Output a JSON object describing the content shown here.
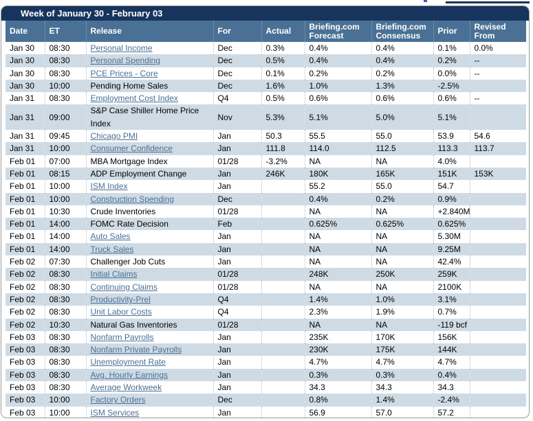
{
  "page": {
    "cutoff_fragment": "partial element cut off at top edge"
  },
  "calendar": {
    "title": "Week of January 30 - February 03",
    "columns": [
      "Date",
      "ET",
      "Release",
      "For",
      "Actual",
      "Briefing.com Forecast",
      "Briefing.com Consensus",
      "Prior",
      "Revised From"
    ],
    "colors": {
      "title_bar": "#16345c",
      "header_row": "#4a7195",
      "row_stripe": "#cfdbe4",
      "link": "#4a6f94",
      "border": "#999999"
    },
    "rows": [
      {
        "date": "Jan 30",
        "et": "08:30",
        "release": "Personal Income",
        "link": true,
        "for": "Dec",
        "actual": "0.3%",
        "forecast": "0.4%",
        "consensus": "0.4%",
        "prior": "0.1%",
        "revised": "0.0%"
      },
      {
        "date": "Jan 30",
        "et": "08:30",
        "release": "Personal Spending",
        "link": true,
        "for": "Dec",
        "actual": "0.5%",
        "forecast": "0.4%",
        "consensus": "0.4%",
        "prior": "0.2%",
        "revised": "--"
      },
      {
        "date": "Jan 30",
        "et": "08:30",
        "release": "PCE Prices - Core",
        "link": true,
        "for": "Dec",
        "actual": "0.1%",
        "forecast": "0.2%",
        "consensus": "0.2%",
        "prior": "0.0%",
        "revised": "--"
      },
      {
        "date": "Jan 30",
        "et": "10:00",
        "release": "Pending Home Sales",
        "link": false,
        "for": "Dec",
        "actual": "1.6%",
        "forecast": "1.0%",
        "consensus": "1.3%",
        "prior": "-2.5%",
        "revised": ""
      },
      {
        "date": "Jan 31",
        "et": "08:30",
        "release": "Employment Cost Index",
        "link": true,
        "for": "Q4",
        "actual": "0.5%",
        "forecast": "0.6%",
        "consensus": "0.6%",
        "prior": "0.6%",
        "revised": "--"
      },
      {
        "date": "Jan 31",
        "et": "09:00",
        "release": "S&P Case Shiller Home Price Index",
        "link": false,
        "for": "Nov",
        "actual": "5.3%",
        "forecast": "5.1%",
        "consensus": "5.0%",
        "prior": "5.1%",
        "revised": ""
      },
      {
        "date": "Jan 31",
        "et": "09:45",
        "release": "Chicago PMI",
        "link": true,
        "for": "Jan",
        "actual": "50.3",
        "forecast": "55.5",
        "consensus": "55.0",
        "prior": "53.9",
        "revised": "54.6"
      },
      {
        "date": "Jan 31",
        "et": "10:00",
        "release": "Consumer Confidence",
        "link": true,
        "for": "Jan",
        "actual": "111.8",
        "forecast": "114.0",
        "consensus": "112.5",
        "prior": "113.3",
        "revised": "113.7"
      },
      {
        "date": "Feb 01",
        "et": "07:00",
        "release": "MBA Mortgage Index",
        "link": false,
        "for": "01/28",
        "actual": "-3.2%",
        "forecast": "NA",
        "consensus": "NA",
        "prior": "4.0%",
        "revised": ""
      },
      {
        "date": "Feb 01",
        "et": "08:15",
        "release": "ADP Employment Change",
        "link": false,
        "for": "Jan",
        "actual": "246K",
        "forecast": "180K",
        "consensus": "165K",
        "prior": "151K",
        "revised": "153K"
      },
      {
        "date": "Feb 01",
        "et": "10:00",
        "release": "ISM Index",
        "link": true,
        "for": "Jan",
        "actual": "",
        "forecast": "55.2",
        "consensus": "55.0",
        "prior": "54.7",
        "revised": ""
      },
      {
        "date": "Feb 01",
        "et": "10:00",
        "release": "Construction Spending",
        "link": true,
        "for": "Dec",
        "actual": "",
        "forecast": "0.4%",
        "consensus": "0.2%",
        "prior": "0.9%",
        "revised": ""
      },
      {
        "date": "Feb 01",
        "et": "10:30",
        "release": "Crude Inventories",
        "link": false,
        "for": "01/28",
        "actual": "",
        "forecast": "NA",
        "consensus": "NA",
        "prior": "+2.840M",
        "revised": ""
      },
      {
        "date": "Feb 01",
        "et": "14:00",
        "release": "FOMC Rate Decision",
        "link": false,
        "for": "Feb",
        "actual": "",
        "forecast": "0.625%",
        "consensus": "0.625%",
        "prior": "0.625%",
        "revised": ""
      },
      {
        "date": "Feb 01",
        "et": "14:00",
        "release": "Auto Sales",
        "link": true,
        "for": "Jan",
        "actual": "",
        "forecast": "NA",
        "consensus": "NA",
        "prior": "5.30M",
        "revised": ""
      },
      {
        "date": "Feb 01",
        "et": "14:00",
        "release": "Truck Sales",
        "link": true,
        "for": "Jan",
        "actual": "",
        "forecast": "NA",
        "consensus": "NA",
        "prior": "9.25M",
        "revised": ""
      },
      {
        "date": "Feb 02",
        "et": "07:30",
        "release": "Challenger Job Cuts",
        "link": false,
        "for": "Jan",
        "actual": "",
        "forecast": "NA",
        "consensus": "NA",
        "prior": "42.4%",
        "revised": ""
      },
      {
        "date": "Feb 02",
        "et": "08:30",
        "release": "Initial Claims",
        "link": true,
        "for": "01/28",
        "actual": "",
        "forecast": "248K",
        "consensus": "250K",
        "prior": "259K",
        "revised": ""
      },
      {
        "date": "Feb 02",
        "et": "08:30",
        "release": "Continuing Claims",
        "link": true,
        "for": "01/28",
        "actual": "",
        "forecast": "NA",
        "consensus": "NA",
        "prior": "2100K",
        "revised": ""
      },
      {
        "date": "Feb 02",
        "et": "08:30",
        "release": "Productivity-Prel",
        "link": true,
        "for": "Q4",
        "actual": "",
        "forecast": "1.4%",
        "consensus": "1.0%",
        "prior": "3.1%",
        "revised": ""
      },
      {
        "date": "Feb 02",
        "et": "08:30",
        "release": "Unit Labor Costs",
        "link": true,
        "for": "Q4",
        "actual": "",
        "forecast": "2.3%",
        "consensus": "1.9%",
        "prior": "0.7%",
        "revised": ""
      },
      {
        "date": "Feb 02",
        "et": "10:30",
        "release": "Natural Gas Inventories",
        "link": false,
        "for": "01/28",
        "actual": "",
        "forecast": "NA",
        "consensus": "NA",
        "prior": "-119 bcf",
        "revised": ""
      },
      {
        "date": "Feb 03",
        "et": "08:30",
        "release": "Nonfarm Payrolls",
        "link": true,
        "for": "Jan",
        "actual": "",
        "forecast": "235K",
        "consensus": "170K",
        "prior": "156K",
        "revised": ""
      },
      {
        "date": "Feb 03",
        "et": "08:30",
        "release": "Nonfarm Private Payrolls",
        "link": true,
        "for": "Jan",
        "actual": "",
        "forecast": "230K",
        "consensus": "175K",
        "prior": "144K",
        "revised": ""
      },
      {
        "date": "Feb 03",
        "et": "08:30",
        "release": "Unemployment Rate",
        "link": true,
        "for": "Jan",
        "actual": "",
        "forecast": "4.7%",
        "consensus": "4.7%",
        "prior": "4.7%",
        "revised": ""
      },
      {
        "date": "Feb 03",
        "et": "08:30",
        "release": "Avg. Hourly Earnings",
        "link": true,
        "for": "Jan",
        "actual": "",
        "forecast": "0.3%",
        "consensus": "0.3%",
        "prior": "0.4%",
        "revised": ""
      },
      {
        "date": "Feb 03",
        "et": "08:30",
        "release": "Average Workweek",
        "link": true,
        "for": "Jan",
        "actual": "",
        "forecast": "34.3",
        "consensus": "34.3",
        "prior": "34.3",
        "revised": ""
      },
      {
        "date": "Feb 03",
        "et": "10:00",
        "release": "Factory Orders",
        "link": true,
        "for": "Dec",
        "actual": "",
        "forecast": "0.8%",
        "consensus": "1.4%",
        "prior": "-2.4%",
        "revised": ""
      },
      {
        "date": "Feb 03",
        "et": "10:00",
        "release": "ISM Services",
        "link": true,
        "for": "Jan",
        "actual": "",
        "forecast": "56.9",
        "consensus": "57.0",
        "prior": "57.2",
        "revised": ""
      }
    ]
  }
}
